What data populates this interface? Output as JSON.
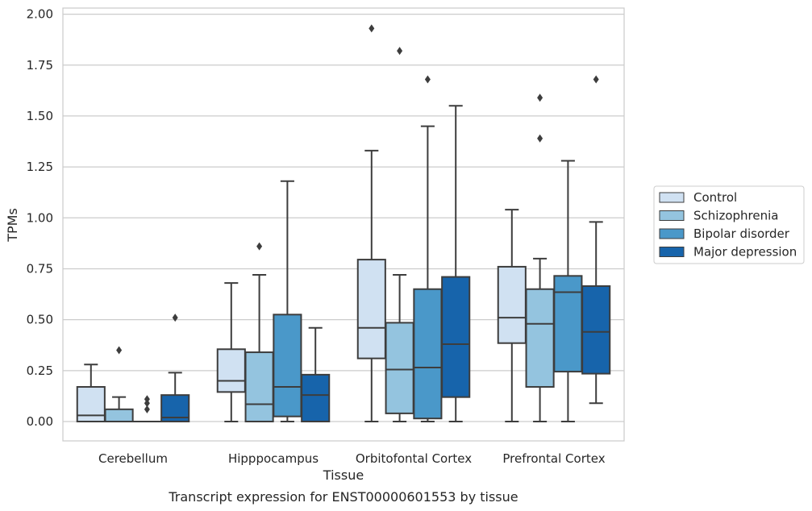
{
  "caption": "Transcript expression for ENST00000601553 by tissue",
  "chart_data": {
    "type": "box",
    "xlabel": "Tissue",
    "ylabel": "TPMs",
    "ylim": [
      -0.095,
      2.03
    ],
    "yticks": [
      "2.00",
      "1.75",
      "1.50",
      "1.25",
      "1.00",
      "0.75",
      "0.50",
      "0.25",
      "0.00"
    ],
    "ytick_values": [
      2.0,
      1.75,
      1.5,
      1.25,
      1.0,
      0.75,
      0.5,
      0.25,
      0.0
    ],
    "categories": [
      "Cerebellum",
      "Hipppocampus",
      "Orbitofontal Cortex",
      "Prefrontal Cortex"
    ],
    "grid": "horizontal",
    "legend_position": "right",
    "series": [
      {
        "name": "Control",
        "color": "#d0e1f2",
        "boxes": [
          {
            "whislo": 0.0,
            "q1": 0.0,
            "med": 0.03,
            "q3": 0.17,
            "whishi": 0.28,
            "fliers": []
          },
          {
            "whislo": 0.0,
            "q1": 0.145,
            "med": 0.2,
            "q3": 0.355,
            "whishi": 0.68,
            "fliers": []
          },
          {
            "whislo": 0.0,
            "q1": 0.31,
            "med": 0.46,
            "q3": 0.795,
            "whishi": 1.33,
            "fliers": [
              1.93
            ]
          },
          {
            "whislo": 0.0,
            "q1": 0.385,
            "med": 0.51,
            "q3": 0.76,
            "whishi": 1.04,
            "fliers": []
          }
        ]
      },
      {
        "name": "Schizophrenia",
        "color": "#94c4df",
        "boxes": [
          {
            "whislo": 0.0,
            "q1": 0.0,
            "med": 0.0,
            "q3": 0.06,
            "whishi": 0.12,
            "fliers": [
              0.35
            ]
          },
          {
            "whislo": 0.0,
            "q1": 0.0,
            "med": 0.085,
            "q3": 0.34,
            "whishi": 0.72,
            "fliers": [
              0.86
            ]
          },
          {
            "whislo": 0.0,
            "q1": 0.04,
            "med": 0.255,
            "q3": 0.485,
            "whishi": 0.72,
            "fliers": [
              1.82
            ]
          },
          {
            "whislo": 0.0,
            "q1": 0.17,
            "med": 0.48,
            "q3": 0.65,
            "whishi": 0.8,
            "fliers": [
              1.39,
              1.59
            ]
          }
        ]
      },
      {
        "name": "Bipolar disorder",
        "color": "#4a98c9",
        "boxes": [
          {
            "whislo": 0.0,
            "q1": 0.0,
            "med": 0.0,
            "q3": 0.0,
            "whishi": 0.0,
            "fliers": [
              0.06,
              0.09,
              0.11
            ]
          },
          {
            "whislo": 0.0,
            "q1": 0.025,
            "med": 0.17,
            "q3": 0.525,
            "whishi": 1.18,
            "fliers": []
          },
          {
            "whislo": 0.0,
            "q1": 0.015,
            "med": 0.265,
            "q3": 0.65,
            "whishi": 1.45,
            "fliers": [
              1.68
            ]
          },
          {
            "whislo": 0.0,
            "q1": 0.245,
            "med": 0.635,
            "q3": 0.715,
            "whishi": 1.28,
            "fliers": []
          }
        ]
      },
      {
        "name": "Major depression",
        "color": "#1764ab",
        "boxes": [
          {
            "whislo": 0.0,
            "q1": 0.0,
            "med": 0.02,
            "q3": 0.13,
            "whishi": 0.24,
            "fliers": [
              0.51
            ]
          },
          {
            "whislo": 0.0,
            "q1": 0.0,
            "med": 0.13,
            "q3": 0.23,
            "whishi": 0.46,
            "fliers": []
          },
          {
            "whislo": 0.0,
            "q1": 0.12,
            "med": 0.38,
            "q3": 0.71,
            "whishi": 1.55,
            "fliers": []
          },
          {
            "whislo": 0.09,
            "q1": 0.235,
            "med": 0.44,
            "q3": 0.665,
            "whishi": 0.98,
            "fliers": [
              1.68
            ]
          }
        ]
      }
    ]
  }
}
